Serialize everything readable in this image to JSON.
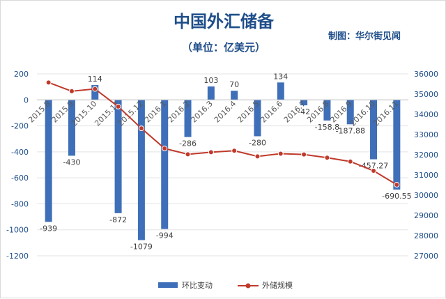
{
  "header": {
    "title": "中国外汇储备",
    "subtitle": "（单位：亿美元）",
    "credit": "制图：华尔街见闻"
  },
  "colors": {
    "bar": "#3f6fb8",
    "line": "#c0392b",
    "text": "#1f4e8a",
    "grid": "#e3e3e3"
  },
  "chart_data": {
    "type": "bar+line",
    "categories": [
      "2015.8",
      "2015.9",
      "2015.10",
      "2015.11",
      "2015.12",
      "2016.1",
      "2016.2",
      "2016.3",
      "2016.4",
      "2016.5",
      "2016.6",
      "2016.7",
      "2016.8",
      "2016.9",
      "2016.10",
      "2016.11"
    ],
    "series": [
      {
        "name": "环比变动",
        "type": "bar",
        "axis": "left",
        "values": [
          -939,
          -430,
          114,
          -872,
          -1079,
          -994,
          -286,
          103,
          70,
          -280,
          134,
          -42,
          -158.8,
          -187.88,
          -457.27,
          -690.55
        ],
        "labels": [
          "-939",
          "-430",
          "114",
          "-872",
          "-1079",
          "-994",
          "-286",
          "103",
          "70",
          "-280",
          "134",
          "-42",
          "-158.8",
          "-187.88",
          "-457.27",
          "-690.55"
        ]
      },
      {
        "name": "外储规模",
        "type": "line",
        "axis": "right",
        "values": [
          35574,
          35141,
          35255,
          34383,
          33304,
          32309,
          32023,
          32126,
          32197,
          31917,
          32052,
          32011,
          31852,
          31664,
          31206,
          30516
        ]
      }
    ],
    "y_left": {
      "min": -1200,
      "max": 200,
      "ticks": [
        "200",
        "0",
        "-200",
        "-400",
        "-600",
        "-800",
        "-1000",
        "-1200"
      ]
    },
    "y_right": {
      "min": 27000,
      "max": 36000,
      "ticks": [
        "36000",
        "35000",
        "34000",
        "33000",
        "32000",
        "31000",
        "30000",
        "29000",
        "28000",
        "27000"
      ]
    },
    "grid": true,
    "legend_position": "bottom"
  }
}
